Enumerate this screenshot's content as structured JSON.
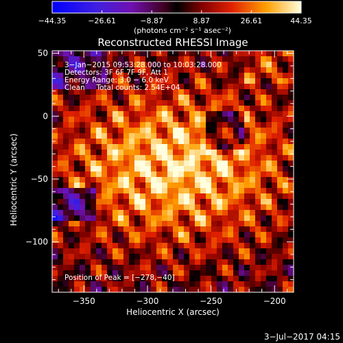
{
  "chart_data": {
    "type": "heatmap",
    "title": "Reconstructed RHESSI Image",
    "xlabel": "Heliocentric X (arcsec)",
    "ylabel": "Heliocentric Y (arcsec)",
    "xlim": [
      -375,
      -185
    ],
    "ylim": [
      -140,
      52
    ],
    "xticks": [
      -350,
      -300,
      -250,
      -200
    ],
    "yticks": [
      50,
      0,
      -50,
      -100
    ],
    "xtick_labels": [
      "−350",
      "−300",
      "−250",
      "−200"
    ],
    "ytick_labels": [
      "50",
      "0",
      "−50",
      "−100"
    ],
    "colorbar": {
      "min": -44.35,
      "max": 44.35,
      "tick_labels": [
        "−44.35",
        "−26.61",
        "−8.87",
        "8.87",
        "26.61",
        "44.35"
      ],
      "units_label": "(photons cm⁻² s⁻¹ asec⁻²)"
    },
    "annotations": [
      "3−Jan−2015 09:53:28.000 to 10:03:28.000",
      "Detectors: 3F 6F 7F 9F, Att 1",
      "Energy Range: 3.0 − 6.0 keV",
      "Clean     Total counts: 2.54E+04"
    ],
    "peak_label": "Position of Peak = [−278,−40]",
    "peak": [
      -278,
      -40
    ]
  },
  "timestamp": "3−Jul−2017 04:15"
}
